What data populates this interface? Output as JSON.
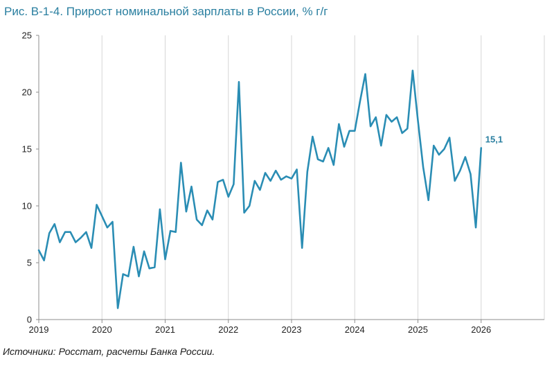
{
  "chart_data": {
    "type": "line",
    "title": "Рис. В-1-4. Прирост номинальной зарплаты в России, % г/г",
    "source": "Источники: Росстат, расчеты Банка России.",
    "xlabel": "",
    "ylabel": "",
    "ylim": [
      0,
      25
    ],
    "yticks": [
      "0",
      "5",
      "10",
      "15",
      "20",
      "25"
    ],
    "xticks": [
      "2019",
      "2020",
      "2021",
      "2022",
      "2023",
      "2024",
      "2025",
      "2026"
    ],
    "xrange": [
      2019,
      2027
    ],
    "grid": "vertical",
    "series_color": "#2a8db4",
    "last_value_label": "15,1",
    "series": [
      {
        "x": [
          "2019-01",
          "2019-02",
          "2019-03",
          "2019-04",
          "2019-05",
          "2019-06",
          "2019-07",
          "2019-08",
          "2019-09",
          "2019-10",
          "2019-11",
          "2019-12",
          "2020-01",
          "2020-02",
          "2020-03",
          "2020-04",
          "2020-05",
          "2020-06",
          "2020-07",
          "2020-08",
          "2020-09",
          "2020-10",
          "2020-11",
          "2020-12",
          "2021-01",
          "2021-02",
          "2021-03",
          "2021-04",
          "2021-05",
          "2021-06",
          "2021-07",
          "2021-08",
          "2021-09",
          "2021-10",
          "2021-11",
          "2021-12",
          "2022-01",
          "2022-02",
          "2022-03",
          "2022-04",
          "2022-05",
          "2022-06",
          "2022-07",
          "2022-08",
          "2022-09",
          "2022-10",
          "2022-11",
          "2022-12",
          "2023-01",
          "2023-02",
          "2023-03",
          "2023-04",
          "2023-05",
          "2023-06",
          "2023-07",
          "2023-08",
          "2023-09",
          "2023-10",
          "2023-11",
          "2023-12",
          "2024-01",
          "2024-02",
          "2024-03",
          "2024-04",
          "2024-05",
          "2024-06",
          "2024-07",
          "2024-08",
          "2024-09",
          "2024-10",
          "2024-11",
          "2024-12",
          "2025-01",
          "2025-02",
          "2025-03",
          "2025-04",
          "2025-05",
          "2025-06",
          "2025-07",
          "2025-08",
          "2025-09",
          "2025-10",
          "2025-11",
          "2025-12",
          "2026-01"
        ],
        "values": [
          6.1,
          5.2,
          7.6,
          8.4,
          6.8,
          7.7,
          7.7,
          6.8,
          7.2,
          7.7,
          6.3,
          10.1,
          9.1,
          8.1,
          8.6,
          1.0,
          4.0,
          3.8,
          6.4,
          3.8,
          6.0,
          4.5,
          4.6,
          9.7,
          5.3,
          7.8,
          7.7,
          13.8,
          9.5,
          11.7,
          8.8,
          8.3,
          9.6,
          8.8,
          12.1,
          12.3,
          10.8,
          11.9,
          20.9,
          9.4,
          10.0,
          12.2,
          11.4,
          12.9,
          12.2,
          13.1,
          12.3,
          12.6,
          12.4,
          13.2,
          6.3,
          13.0,
          16.1,
          14.1,
          13.9,
          15.1,
          13.6,
          17.2,
          15.2,
          16.6,
          16.6,
          19.2,
          21.6,
          17.0,
          17.8,
          15.3,
          18.0,
          17.4,
          17.8,
          16.4,
          16.8,
          21.9,
          17.5,
          13.4,
          10.5,
          15.3,
          14.5,
          15.0,
          16.0,
          12.2,
          13.1,
          14.3,
          12.8,
          8.1,
          15.1
        ]
      }
    ]
  }
}
